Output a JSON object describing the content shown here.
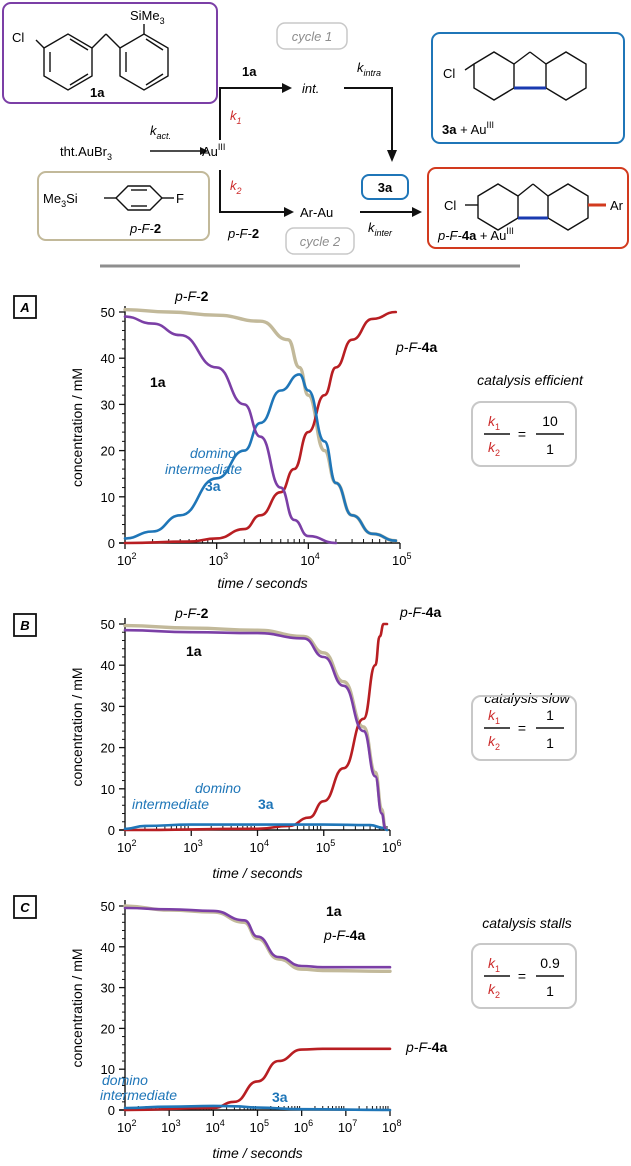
{
  "scheme": {
    "box_1a": {
      "label": "1a",
      "tms": "SiMe",
      "tms_sub": "3",
      "cl": "Cl"
    },
    "box_2": {
      "tms": "Me",
      "tms_sub": "3",
      "tms_si": "Si",
      "f": "F",
      "label_prefix": "p-F-",
      "label_bold": "2"
    },
    "box_3a": {
      "cl": "Cl",
      "label_bold": "3a",
      "plus": " + Au",
      "sup": "III"
    },
    "box_4a": {
      "cl": "Cl",
      "ar": "Ar",
      "label_prefix": "p-F-",
      "label_bold": "4a",
      "plus": " + Au",
      "sup": "III"
    },
    "cycle1": "cycle 1",
    "cycle2": "cycle 2",
    "tht": "tht.AuBr",
    "tht_sub": "3",
    "k_act": "k",
    "k_act_sub": "act.",
    "au": "Au",
    "au_sup": "III",
    "arrow_1a": "1a",
    "int": "int.",
    "k_intra": "k",
    "k_intra_sub": "intra",
    "k1": "k",
    "k1_sub": "1",
    "k2": "k",
    "k2_sub": "2",
    "arrow_pf2_prefix": "p-F-",
    "arrow_pf2_bold": "2",
    "ar_au": "Ar-Au",
    "box_3a_small": "3a",
    "k_inter": "k",
    "k_inter_sub": "inter"
  },
  "colors": {
    "purple": "#7b3fa6",
    "khaki": "#c2b99a",
    "blue": "#1f76b8",
    "red": "#b81e22",
    "gray": "#8e8e8e",
    "k_red": "#cc2a2a"
  },
  "chart_data": [
    {
      "panel": "A",
      "type": "line",
      "xscale": "log",
      "xlim": [
        100,
        100000
      ],
      "ylim": [
        0,
        50
      ],
      "xticks": [
        "10",
        "10",
        "10",
        "10"
      ],
      "xtick_exp": [
        "2",
        "3",
        "4",
        "5"
      ],
      "yticks": [
        "0",
        "10",
        "20",
        "30",
        "40",
        "50"
      ],
      "xlabel": "time / seconds",
      "ylabel": "concentration / mM",
      "note": "catalysis efficient",
      "ratio": {
        "num": "10",
        "den": "1"
      },
      "series": [
        {
          "key": "2",
          "x": [
            100,
            300,
            1000,
            3000,
            6000,
            8000,
            10000,
            15000,
            20000,
            30000,
            50000,
            90000
          ],
          "y": [
            50.5,
            50,
            49.3,
            48,
            44,
            38,
            32,
            20,
            13,
            6,
            2,
            0.5
          ]
        },
        {
          "key": "1a",
          "x": [
            100,
            200,
            400,
            1000,
            2000,
            3000,
            5000,
            7000,
            10000,
            20000
          ],
          "y": [
            49,
            47.5,
            45,
            38,
            30,
            23,
            12,
            5,
            1.5,
            0
          ]
        },
        {
          "key": "3a",
          "x": [
            100,
            200,
            400,
            1000,
            2000,
            3000,
            5000,
            8000,
            10000,
            15000,
            20000,
            30000,
            50000,
            90000
          ],
          "y": [
            1,
            2.5,
            6,
            14,
            20,
            26,
            33,
            36.5,
            33,
            22,
            13,
            6,
            2,
            0.5
          ]
        },
        {
          "key": "4a",
          "x": [
            100,
            500,
            1000,
            2000,
            3000,
            5000,
            7000,
            10000,
            15000,
            20000,
            30000,
            50000,
            90000
          ],
          "y": [
            0,
            0.3,
            1,
            3,
            6,
            11,
            16,
            24,
            32,
            38,
            44,
            48.5,
            50
          ]
        }
      ],
      "labels": {
        "l2_prefix": "p-F-",
        "l2_bold": "2",
        "l1a": "1a",
        "l3a_1": "domino",
        "l3a_2": "intermediate",
        "l3a_bold": "3a",
        "l4a_prefix": "p-F-",
        "l4a_bold": "4a"
      }
    },
    {
      "panel": "B",
      "type": "line",
      "xscale": "log",
      "xlim": [
        100,
        1000000
      ],
      "ylim": [
        0,
        50
      ],
      "xticks": [
        "10",
        "10",
        "10",
        "10",
        "10"
      ],
      "xtick_exp": [
        "2",
        "3",
        "4",
        "5",
        "6"
      ],
      "yticks": [
        "0",
        "10",
        "20",
        "30",
        "40",
        "50"
      ],
      "xlabel": "time / seconds",
      "ylabel": "concentration / mM",
      "note": "catalysis slow",
      "ratio": {
        "num": "1",
        "den": "1"
      },
      "series": [
        {
          "key": "2",
          "x": [
            100,
            1000,
            10000,
            50000,
            100000,
            200000,
            400000,
            600000,
            750000,
            850000
          ],
          "y": [
            49.6,
            49,
            48.5,
            47,
            43,
            36,
            25,
            14,
            5,
            0.5
          ]
        },
        {
          "key": "1a",
          "x": [
            100,
            1000,
            10000,
            50000,
            100000,
            200000,
            400000,
            600000,
            750000,
            850000
          ],
          "y": [
            48.5,
            48,
            47.8,
            46.5,
            42,
            35,
            24,
            13,
            4,
            0.5
          ]
        },
        {
          "key": "3a",
          "x": [
            100,
            200,
            1000,
            10000,
            100000,
            500000,
            800000,
            900000
          ],
          "y": [
            0.3,
            1,
            1.3,
            1.3,
            1.3,
            1.2,
            0.5,
            0
          ]
        },
        {
          "key": "4a",
          "x": [
            100,
            10000,
            30000,
            60000,
            100000,
            200000,
            400000,
            600000,
            700000,
            800000,
            900000
          ],
          "y": [
            0,
            0.3,
            1,
            3,
            7,
            15,
            27,
            40,
            47,
            50,
            50
          ]
        }
      ],
      "labels": {
        "l2_prefix": "p-F-",
        "l2_bold": "2",
        "l1a": "1a",
        "l3a_1": "domino",
        "l3a_2": "intermediate",
        "l3a_bold": "3a",
        "l4a_prefix": "p-F-",
        "l4a_bold": "4a"
      }
    },
    {
      "panel": "C",
      "type": "line",
      "xscale": "log",
      "xlim": [
        100,
        100000000
      ],
      "ylim": [
        0,
        50
      ],
      "xticks": [
        "10",
        "10",
        "10",
        "10",
        "10",
        "10",
        "10"
      ],
      "xtick_exp": [
        "2",
        "3",
        "4",
        "5",
        "6",
        "7",
        "8"
      ],
      "yticks": [
        "0",
        "10",
        "20",
        "30",
        "40",
        "50"
      ],
      "xlabel": "time / seconds",
      "ylabel": "concentration / mM",
      "note": "catalysis stalls",
      "ratio": {
        "num": "0.9",
        "den": "1"
      },
      "series": [
        {
          "key": "2",
          "x": [
            100,
            1000,
            10000,
            50000,
            100000,
            300000,
            1000000,
            3000000,
            100000000
          ],
          "y": [
            50,
            49,
            48.5,
            46,
            42,
            37,
            34.5,
            34.2,
            34
          ]
        },
        {
          "key": "1a",
          "x": [
            100,
            1000,
            10000,
            50000,
            100000,
            300000,
            1000000,
            3000000,
            100000000
          ],
          "y": [
            49.5,
            49.2,
            48.8,
            46.5,
            42.5,
            37.5,
            35.3,
            35,
            35
          ]
        },
        {
          "key": "3a",
          "x": [
            100,
            1000,
            10000,
            30000,
            100000,
            1000000,
            100000000
          ],
          "y": [
            0.5,
            0.8,
            1,
            0.9,
            0.6,
            0.2,
            0
          ]
        },
        {
          "key": "4a",
          "x": [
            100,
            10000,
            30000,
            100000,
            300000,
            1000000,
            3000000,
            100000000
          ],
          "y": [
            0,
            0.5,
            2,
            7,
            12,
            14.8,
            15,
            15
          ]
        }
      ],
      "labels": {
        "l1a": "1a",
        "l2b_prefix": "p-F-",
        "l2b_bold": "4a",
        "l3a_1": "domino",
        "l3a_2": "intermediate",
        "l3a_bold": "3a",
        "l4a_prefix": "p-F-",
        "l4a_bold": "4a"
      }
    }
  ]
}
